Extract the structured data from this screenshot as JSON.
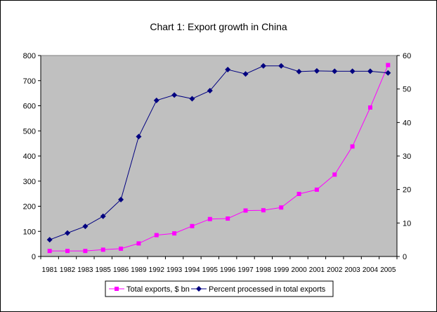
{
  "chart_data": {
    "type": "line",
    "title": "Chart 1: Export growth in China",
    "categories": [
      "1981",
      "1982",
      "1983",
      "1985",
      "1986",
      "1989",
      "1992",
      "1993",
      "1994",
      "1995",
      "1996",
      "1997",
      "1998",
      "1999",
      "2000",
      "2001",
      "2002",
      "2003",
      "2004",
      "2005"
    ],
    "y_left": {
      "ylim": [
        0,
        800
      ],
      "ticks": [
        "0",
        "100",
        "200",
        "300",
        "400",
        "500",
        "600",
        "700",
        "800"
      ]
    },
    "y_right": {
      "ylim": [
        0,
        60
      ],
      "ticks": [
        "0",
        "10",
        "20",
        "30",
        "40",
        "50",
        "60"
      ]
    },
    "grid": false,
    "plot_background": "#c0c0c0",
    "legend_position": "bottom",
    "series": [
      {
        "name": "Total exports, $ bn",
        "axis": "left",
        "color": "#ff00ff",
        "marker": "square",
        "values": [
          22,
          22,
          22,
          27,
          31,
          52,
          85,
          92,
          121,
          149,
          151,
          183,
          184,
          195,
          249,
          266,
          326,
          438,
          593,
          762
        ]
      },
      {
        "name": "Percent processed in total exports",
        "axis": "right",
        "color": "#000080",
        "marker": "diamond",
        "values": [
          5,
          7,
          9,
          12,
          17,
          35.8,
          46.6,
          48.2,
          47.1,
          49.5,
          55.8,
          54.5,
          56.9,
          56.9,
          55.2,
          55.4,
          55.3,
          55.3,
          55.3,
          54.8
        ]
      }
    ]
  }
}
